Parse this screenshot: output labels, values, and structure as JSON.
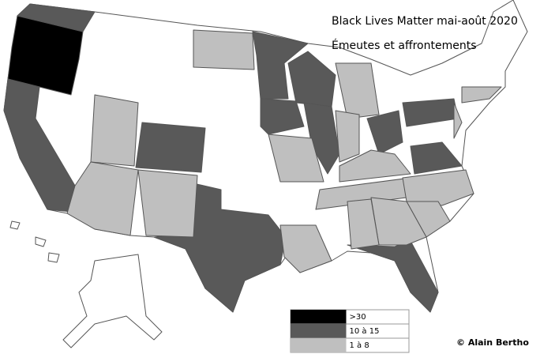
{
  "map": {
    "title": "Black Lives Matter mai-août 2020",
    "subtitle": "Émeutes et affrontements",
    "legend": [
      {
        "label": ">30",
        "color": "#000000"
      },
      {
        "label": "10 à 15",
        "color": "#595959"
      },
      {
        "label": "1 à 8",
        "color": "#bfbfbf"
      }
    ],
    "credit": "© Alain Bertho"
  }
}
